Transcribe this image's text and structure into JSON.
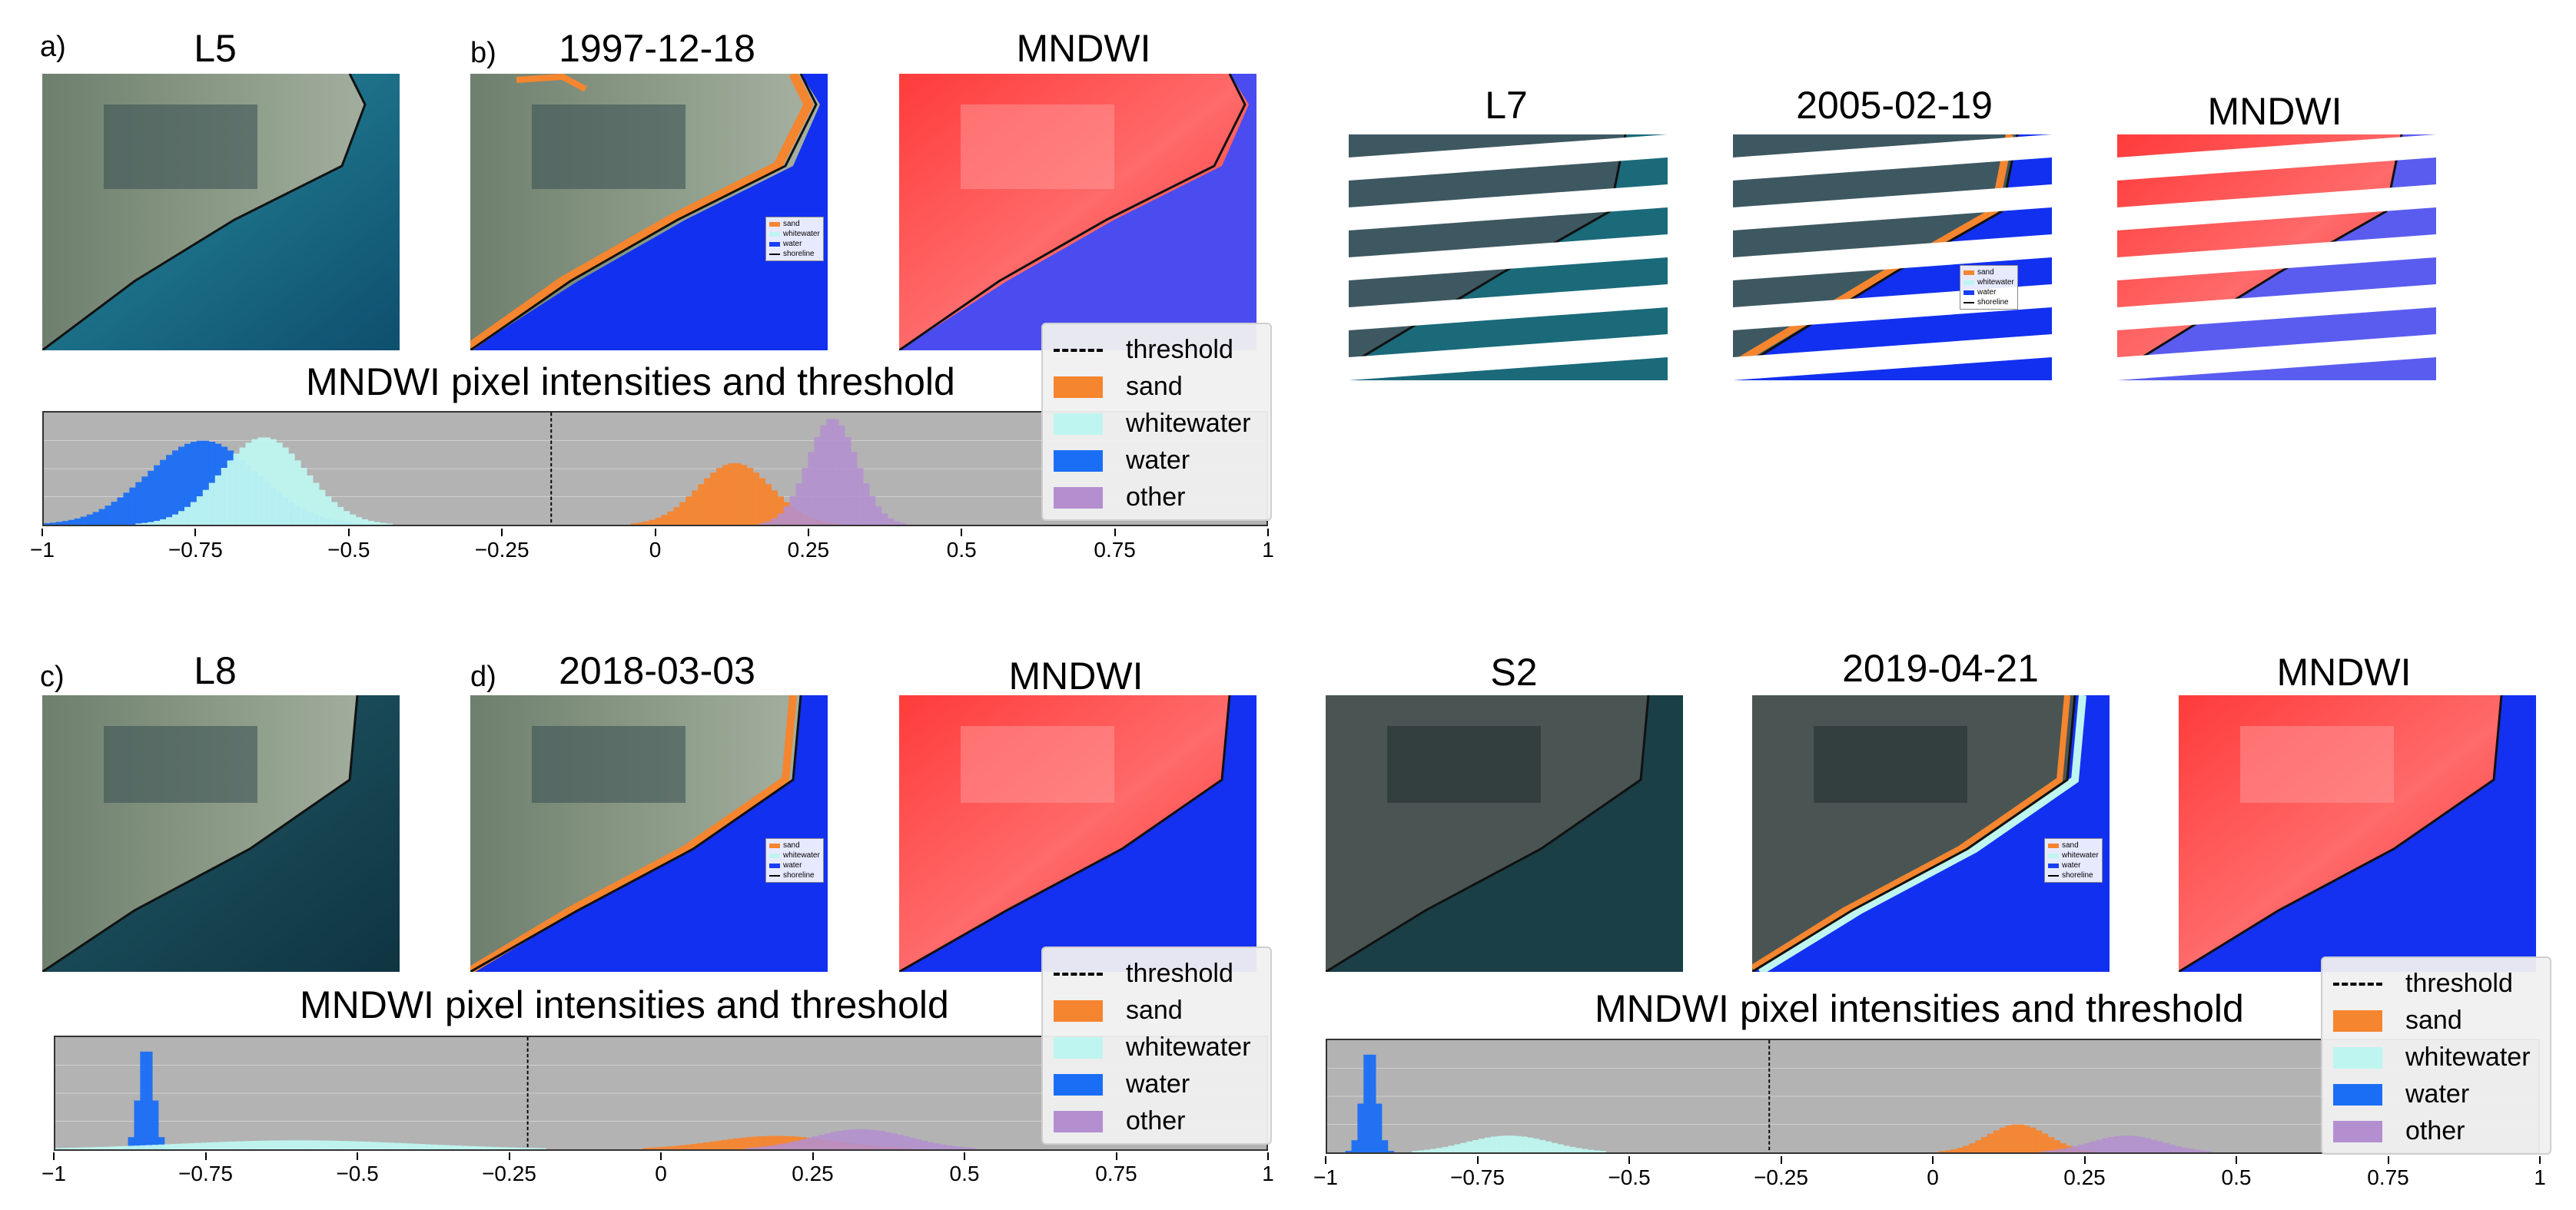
{
  "panel_labels": {
    "a": "a)",
    "b": "b)",
    "c": "c)",
    "d": "d)"
  },
  "image_titles": {
    "l5": "L5",
    "date1997": "1997-12-18",
    "mndwi_a": "MNDWI",
    "l7": "L7",
    "date2005": "2005-02-19",
    "mndwi_l7": "MNDWI",
    "l8": "L8",
    "date2018": "2018-03-03",
    "mndwi_c": "MNDWI",
    "s2": "S2",
    "date2019": "2019-04-21",
    "mndwi_s2": "MNDWI"
  },
  "mini_legend": {
    "sand": "sand",
    "whitewater": "whitewater",
    "water": "water",
    "shoreline": "shoreline"
  },
  "legend": {
    "threshold": "threshold",
    "sand": "sand",
    "whitewater": "whitewater",
    "water": "water",
    "other": "other"
  },
  "colors": {
    "sand": "#f5852f",
    "whitewater": "#bff5f0",
    "water": "#1a6ef5",
    "other": "#b38fd0",
    "threshold": "#000000",
    "hist_bg": "#b3b3b3"
  },
  "chart_data": [
    {
      "type": "bar",
      "title": "MNDWI pixel intensities and threshold",
      "xlim": [
        -1,
        1
      ],
      "xticks": [
        "−1",
        "−0.75",
        "−0.5",
        "−0.25",
        "0",
        "0.25",
        "0.5",
        "0.75",
        "1"
      ],
      "threshold": -0.17,
      "series": [
        {
          "name": "water",
          "center": -0.74,
          "width": 0.09,
          "height": 0.75
        },
        {
          "name": "whitewater",
          "center": -0.64,
          "width": 0.07,
          "height": 0.78
        },
        {
          "name": "sand",
          "center": 0.13,
          "width": 0.06,
          "height": 0.55
        },
        {
          "name": "other",
          "center": 0.29,
          "width": 0.04,
          "height": 0.95
        }
      ]
    },
    {
      "type": "bar",
      "title": "MNDWI pixel intensities and threshold",
      "xlim": [
        -1,
        1
      ],
      "xticks": [
        "−1",
        "−0.75",
        "−0.5",
        "−0.25",
        "0",
        "0.25",
        "0.5",
        "0.75",
        "1"
      ],
      "threshold": -0.22,
      "series": [
        {
          "name": "water",
          "center": -0.85,
          "width": 0.012,
          "height": 0.95
        },
        {
          "name": "whitewater",
          "center": -0.6,
          "width": 0.2,
          "height": 0.08
        },
        {
          "name": "sand",
          "center": 0.19,
          "width": 0.1,
          "height": 0.12
        },
        {
          "name": "other",
          "center": 0.33,
          "width": 0.08,
          "height": 0.18
        }
      ]
    },
    {
      "type": "bar",
      "title": "MNDWI pixel intensities and threshold",
      "xlim": [
        -1,
        1
      ],
      "xticks": [
        "−1",
        "−0.75",
        "−0.5",
        "−0.25",
        "0",
        "0.25",
        "0.5",
        "0.75",
        "1"
      ],
      "threshold": -0.27,
      "series": [
        {
          "name": "water",
          "center": -0.93,
          "width": 0.012,
          "height": 0.95
        },
        {
          "name": "whitewater",
          "center": -0.7,
          "width": 0.07,
          "height": 0.15
        },
        {
          "name": "sand",
          "center": 0.14,
          "width": 0.05,
          "height": 0.25
        },
        {
          "name": "other",
          "center": 0.32,
          "width": 0.06,
          "height": 0.15
        }
      ]
    }
  ]
}
